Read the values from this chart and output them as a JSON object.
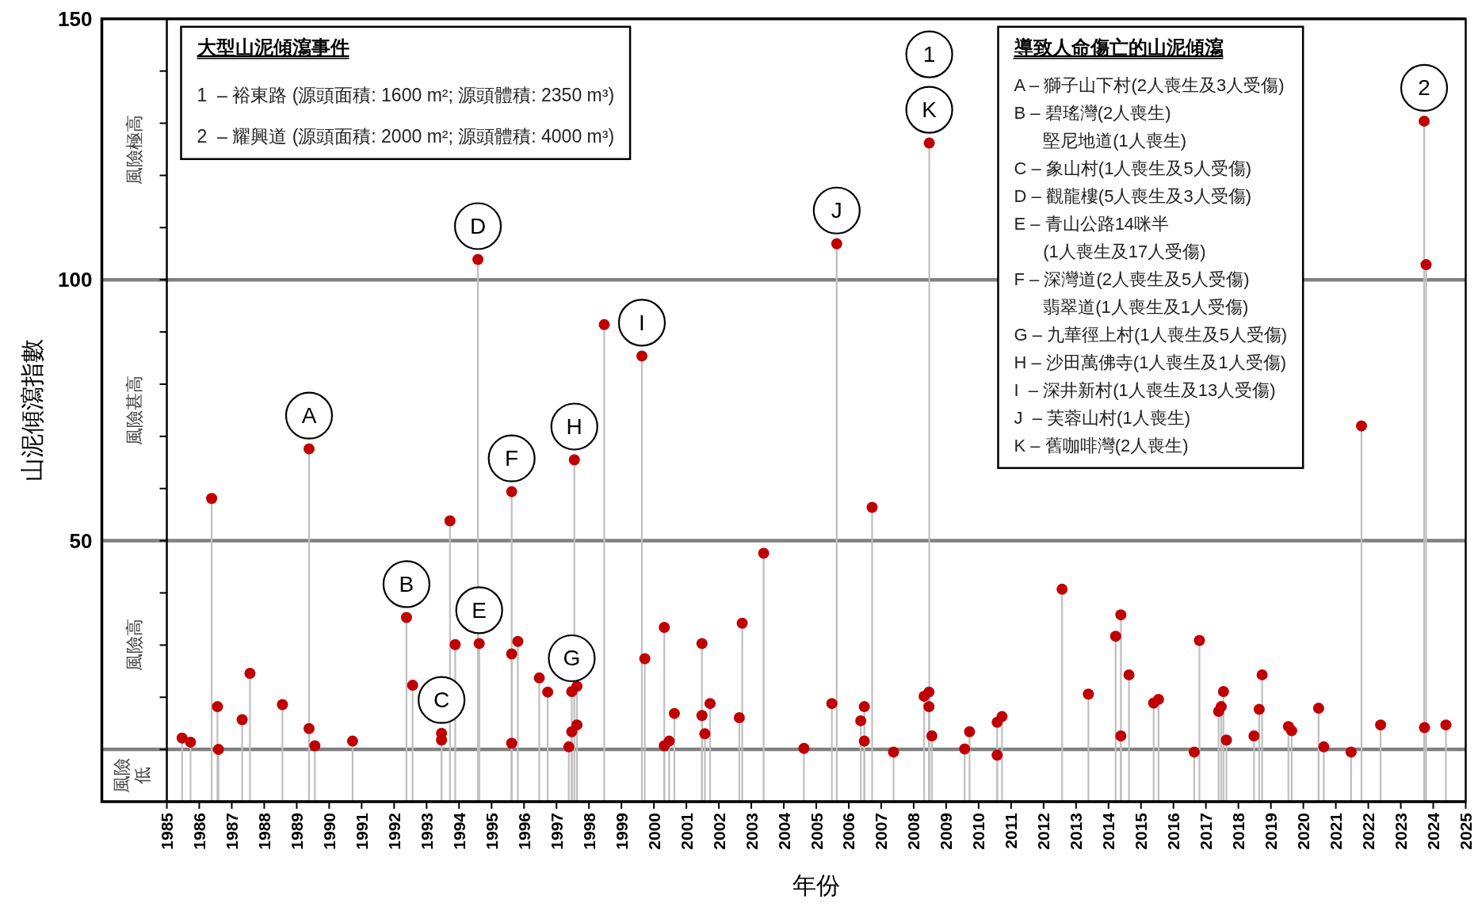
{
  "chart_data": {
    "type": "lollipop",
    "xlabel": "年份",
    "ylabel": "山泥傾瀉指數",
    "marker": "circle",
    "xlim": [
      1985,
      2025
    ],
    "xticks": [
      1985,
      1986,
      1987,
      1988,
      1989,
      1990,
      1991,
      1992,
      1993,
      1994,
      1995,
      1996,
      1997,
      1998,
      1999,
      2000,
      2001,
      2002,
      2003,
      2004,
      2005,
      2006,
      2007,
      2008,
      2009,
      2010,
      2011,
      2012,
      2013,
      2014,
      2015,
      2016,
      2017,
      2018,
      2019,
      2020,
      2021,
      2022,
      2023,
      2024,
      2025
    ],
    "ylim": [
      0,
      150
    ],
    "yticks": [
      {
        "value": 10,
        "label": null
      },
      {
        "value": 20,
        "label": null
      },
      {
        "value": 30,
        "label": null
      },
      {
        "value": 40,
        "label": null
      },
      50,
      {
        "value": 60,
        "label": null
      },
      {
        "value": 70,
        "label": null
      },
      {
        "value": 80,
        "label": null
      },
      {
        "value": 90,
        "label": null
      },
      100,
      {
        "value": 110,
        "label": null
      },
      {
        "value": 120,
        "label": null
      },
      {
        "value": 130,
        "label": null
      },
      {
        "value": 140,
        "label": null
      },
      150
    ],
    "series": [
      {
        "color": "#c00000",
        "x": [
          1985.47,
          1985.73,
          1986.38,
          1986.56,
          1986.59,
          1987.32,
          1987.56,
          1988.56,
          1989.38,
          1989.38,
          1989.56,
          1990.72,
          1992.38,
          1992.57,
          1993.46,
          1993.46,
          1993.72,
          1993.88,
          1994.58,
          1994.62,
          1995.62,
          1995.62,
          1995.62,
          1995.81,
          1996.47,
          1996.73,
          1997.38,
          1997.47,
          1997.47,
          1997.55,
          1997.63,
          1997.63,
          1998.47,
          1999.63,
          1999.72,
          2000.32,
          2000.32,
          2000.47,
          2000.63,
          2001.48,
          2001.48,
          2001.57,
          2001.73,
          2002.63,
          2002.72,
          2003.38,
          2004.62,
          2005.48,
          2005.63,
          2006.37,
          2006.48,
          2006.48,
          2006.72,
          2007.38,
          2008.32,
          2008.47,
          2008.47,
          2008.48,
          2008.56,
          2009.57,
          2009.72,
          2010.57,
          2010.57,
          2010.72,
          2012.57,
          2013.38,
          2014.22,
          2014.38,
          2014.38,
          2014.63,
          2015.39,
          2015.54,
          2016.64,
          2016.8,
          2017.39,
          2017.47,
          2017.54,
          2017.63,
          2018.48,
          2018.64,
          2018.73,
          2019.54,
          2019.64,
          2020.47,
          2020.63,
          2021.47,
          2021.79,
          2022.38,
          2023.72,
          2023.73,
          2023.78,
          2024.39
        ],
        "values": [
          12.2,
          11.4,
          58.1,
          18.2,
          10.0,
          15.7,
          24.6,
          18.6,
          67.6,
          14.0,
          10.7,
          11.6,
          35.3,
          22.3,
          13.1,
          11.8,
          53.8,
          30.1,
          103.9,
          30.3,
          59.4,
          28.3,
          11.2,
          30.7,
          23.7,
          21.0,
          10.5,
          21.1,
          13.4,
          65.5,
          22.1,
          14.7,
          91.4,
          85.4,
          27.4,
          33.4,
          10.7,
          11.6,
          16.9,
          30.3,
          16.5,
          13.0,
          18.8,
          16.1,
          34.2,
          47.6,
          10.2,
          18.8,
          106.9,
          15.5,
          18.2,
          11.6,
          56.4,
          9.5,
          20.2,
          21.0,
          18.2,
          126.2,
          12.6,
          10.1,
          13.4,
          15.2,
          8.9,
          16.3,
          40.7,
          20.6,
          31.7,
          35.8,
          12.6,
          24.3,
          18.9,
          19.6,
          9.5,
          30.9,
          17.3,
          18.2,
          21.1,
          11.8,
          12.6,
          17.7,
          24.3,
          14.4,
          13.6,
          17.9,
          10.5,
          9.5,
          72.0,
          14.7,
          130.4,
          14.2,
          102.9,
          14.7
        ]
      }
    ],
    "ref_lines": [
      {
        "axis": "y",
        "value": 10,
        "color": "#808080"
      },
      {
        "axis": "y",
        "value": 50,
        "color": "#808080"
      },
      {
        "axis": "y",
        "value": 100,
        "color": "#808080"
      }
    ],
    "annotations": [
      "大型山泥傾瀉事件\n1  – 裕東路 (源頭面積: 1600 m²; 源頭體積: 2350 m³)\n2  – 耀興道 (源頭面積: 2000 m²; 源頭體積: 4000 m³)",
      "導致人命傷亡的山泥傾瀉\nA – 獅子山下村(2人喪生及3人受傷)\nB – 碧瑤灣(2人喪生)\n      堅尼地道(1人喪生)\nC – 象山村(1人喪生及5人受傷)\nD – 觀龍樓(5人喪生及3人受傷)\nE – 青山公路14咪半\n      (1人喪生及17人受傷)\nF – 深灣道(2人喪生及5人受傷)\n      翡翠道(1人喪生及1人受傷)\nG – 九華徑上村(1人喪生及5人受傷)\nH – 沙田萬佛寺(1人喪生及1人受傷)\nI  – 深井新村(1人喪生及13人受傷)\nJ  – 芙蓉山村(1人喪生)\nK – 舊咖啡灣(2人喪生)",
      "風險低",
      "風險高",
      "風險甚高",
      "風險極高",
      {
        "text": "A",
        "x": 1989.38,
        "y": 67.6
      },
      {
        "text": "B",
        "x": 1992.38,
        "y": 35.3
      },
      {
        "text": "C",
        "x": 1993.46,
        "y": 13.1
      },
      {
        "text": "D",
        "x": 1994.58,
        "y": 103.9
      },
      {
        "text": "E",
        "x": 1994.62,
        "y": 30.3
      },
      {
        "text": "F",
        "x": 1995.62,
        "y": 59.4
      },
      {
        "text": "G",
        "x": 1997.47,
        "y": 21.1
      },
      {
        "text": "H",
        "x": 1997.55,
        "y": 65.5
      },
      {
        "text": "I",
        "x": 1999.63,
        "y": 85.4
      },
      {
        "text": "J",
        "x": 2005.63,
        "y": 106.9
      },
      {
        "text": "K",
        "x": 2008.48,
        "y": 126.2
      },
      "1",
      {
        "text": "2",
        "x": 2023.72,
        "y": 130.4
      }
    ]
  }
}
